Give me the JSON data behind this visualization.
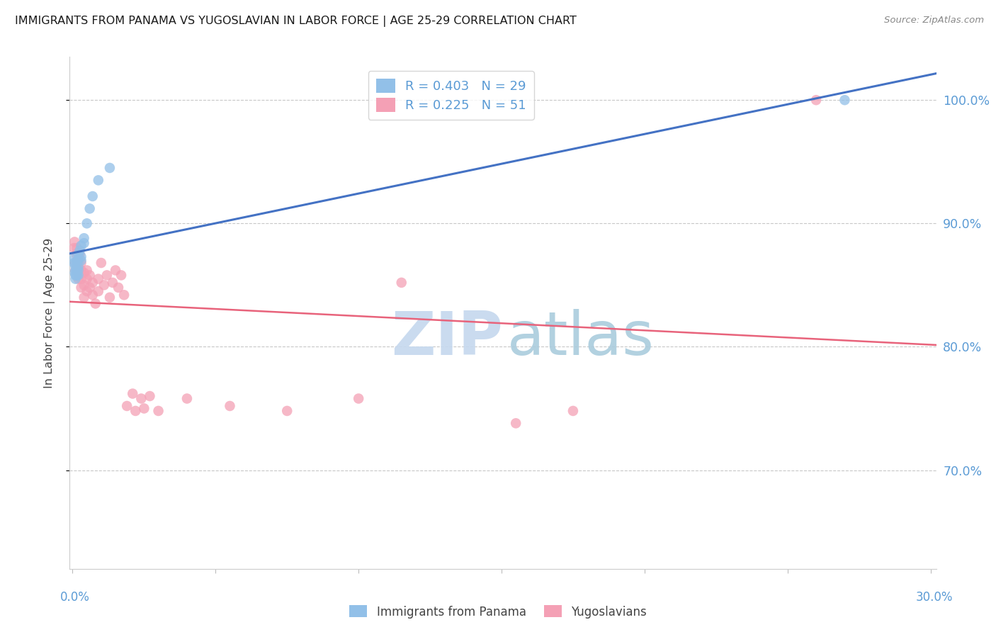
{
  "title": "IMMIGRANTS FROM PANAMA VS YUGOSLAVIAN IN LABOR FORCE | AGE 25-29 CORRELATION CHART",
  "source": "Source: ZipAtlas.com",
  "ylabel": "In Labor Force | Age 25-29",
  "ytick_vals": [
    1.0,
    0.9,
    0.8,
    0.7
  ],
  "ytick_labels": [
    "100.0%",
    "90.0%",
    "80.0%",
    "70.0%"
  ],
  "ymin": 0.62,
  "ymax": 1.035,
  "xmin": -0.001,
  "xmax": 0.302,
  "legend_blue": "R = 0.403   N = 29",
  "legend_pink": "R = 0.225   N = 51",
  "blue_color": "#92C0E8",
  "pink_color": "#F4A0B5",
  "blue_line_color": "#4472C4",
  "pink_line_color": "#E8637B",
  "tick_color": "#5B9BD5",
  "grid_color": "#C8C8C8",
  "panama_x": [
    0.0005,
    0.0007,
    0.0008,
    0.001,
    0.001,
    0.001,
    0.001,
    0.001,
    0.0013,
    0.0015,
    0.0015,
    0.0017,
    0.002,
    0.002,
    0.002,
    0.002,
    0.002,
    0.0025,
    0.003,
    0.003,
    0.003,
    0.004,
    0.004,
    0.005,
    0.006,
    0.007,
    0.009,
    0.013,
    0.27
  ],
  "panama_y": [
    0.868,
    0.872,
    0.86,
    0.855,
    0.858,
    0.862,
    0.865,
    0.868,
    0.858,
    0.862,
    0.858,
    0.87,
    0.858,
    0.862,
    0.865,
    0.87,
    0.875,
    0.878,
    0.87,
    0.873,
    0.882,
    0.884,
    0.888,
    0.9,
    0.912,
    0.922,
    0.935,
    0.945,
    1.0
  ],
  "yugoslav_x": [
    0.0005,
    0.0007,
    0.001,
    0.001,
    0.0013,
    0.0015,
    0.002,
    0.002,
    0.002,
    0.0025,
    0.003,
    0.003,
    0.003,
    0.003,
    0.004,
    0.004,
    0.004,
    0.005,
    0.005,
    0.005,
    0.006,
    0.006,
    0.007,
    0.007,
    0.008,
    0.009,
    0.009,
    0.01,
    0.011,
    0.012,
    0.013,
    0.014,
    0.015,
    0.016,
    0.017,
    0.018,
    0.019,
    0.021,
    0.022,
    0.024,
    0.025,
    0.027,
    0.03,
    0.04,
    0.055,
    0.075,
    0.1,
    0.115,
    0.155,
    0.175,
    0.26
  ],
  "yugoslav_y": [
    0.88,
    0.885,
    0.862,
    0.868,
    0.875,
    0.88,
    0.855,
    0.862,
    0.868,
    0.875,
    0.848,
    0.855,
    0.862,
    0.868,
    0.84,
    0.85,
    0.86,
    0.845,
    0.855,
    0.862,
    0.848,
    0.858,
    0.842,
    0.852,
    0.835,
    0.845,
    0.855,
    0.868,
    0.85,
    0.858,
    0.84,
    0.852,
    0.862,
    0.848,
    0.858,
    0.842,
    0.752,
    0.762,
    0.748,
    0.758,
    0.75,
    0.76,
    0.748,
    0.758,
    0.752,
    0.748,
    0.758,
    0.852,
    0.738,
    0.748,
    1.0
  ]
}
